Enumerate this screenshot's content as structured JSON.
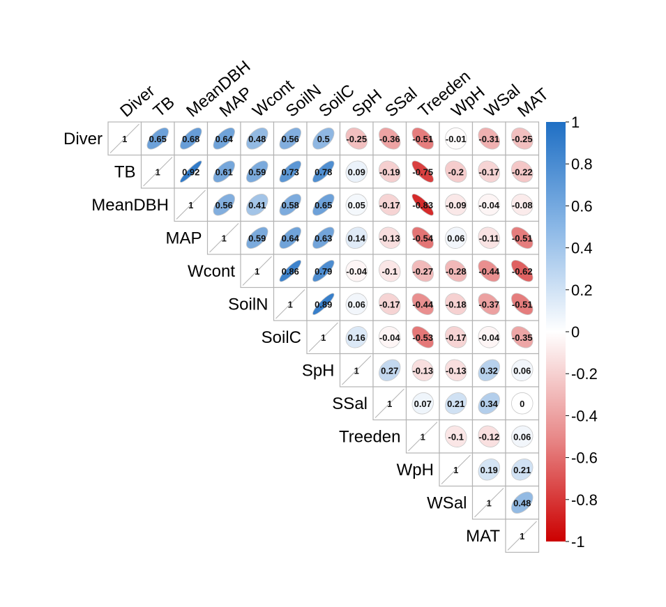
{
  "chart_data": {
    "type": "heatmap",
    "style": "upper-triangle correlation matrix with ellipse glyphs and printed coefficients",
    "title": "",
    "variables": [
      "Diver",
      "TB",
      "MeanDBH",
      "MAP",
      "Wcont",
      "SoilN",
      "SoilC",
      "SpH",
      "SSal",
      "Treeden",
      "WpH",
      "WSal",
      "MAT"
    ],
    "matrix": [
      [
        1,
        0.65,
        0.68,
        0.64,
        0.48,
        0.56,
        0.5,
        -0.25,
        -0.36,
        -0.51,
        -0.01,
        -0.31,
        -0.25
      ],
      [
        null,
        1,
        0.92,
        0.61,
        0.59,
        0.73,
        0.78,
        0.09,
        -0.19,
        -0.75,
        -0.2,
        -0.17,
        -0.22
      ],
      [
        null,
        null,
        1,
        0.56,
        0.41,
        0.58,
        0.65,
        0.05,
        -0.17,
        -0.83,
        -0.09,
        -0.04,
        -0.08
      ],
      [
        null,
        null,
        null,
        1,
        0.59,
        0.64,
        0.63,
        0.14,
        -0.13,
        -0.54,
        0.06,
        -0.11,
        -0.51
      ],
      [
        null,
        null,
        null,
        null,
        1,
        0.86,
        0.79,
        -0.04,
        -0.1,
        -0.27,
        -0.28,
        -0.44,
        -0.62
      ],
      [
        null,
        null,
        null,
        null,
        null,
        1,
        0.89,
        0.06,
        -0.17,
        -0.44,
        -0.18,
        -0.37,
        -0.51
      ],
      [
        null,
        null,
        null,
        null,
        null,
        null,
        1,
        0.16,
        -0.04,
        -0.53,
        -0.17,
        -0.04,
        -0.35
      ],
      [
        null,
        null,
        null,
        null,
        null,
        null,
        null,
        1,
        0.27,
        -0.13,
        -0.13,
        0.32,
        0.06
      ],
      [
        null,
        null,
        null,
        null,
        null,
        null,
        null,
        null,
        1,
        0.07,
        0.21,
        0.34,
        0
      ],
      [
        null,
        null,
        null,
        null,
        null,
        null,
        null,
        null,
        null,
        1,
        -0.1,
        -0.12,
        0.06
      ],
      [
        null,
        null,
        null,
        null,
        null,
        null,
        null,
        null,
        null,
        null,
        1,
        0.19,
        0.21
      ],
      [
        null,
        null,
        null,
        null,
        null,
        null,
        null,
        null,
        null,
        null,
        null,
        1,
        0.48
      ],
      [
        null,
        null,
        null,
        null,
        null,
        null,
        null,
        null,
        null,
        null,
        null,
        null,
        1
      ]
    ],
    "colorbar": {
      "range": [
        -1,
        1
      ],
      "ticks": [
        1,
        0.8,
        0.6,
        0.4,
        0.2,
        0,
        -0.2,
        -0.4,
        -0.6,
        -0.8,
        -1
      ],
      "tick_labels": [
        "1",
        "0.8",
        "0.6",
        "0.4",
        "0.2",
        "0",
        "-0.2",
        "-0.4",
        "-0.6",
        "-0.8",
        "-1"
      ],
      "colors": {
        "negative": "#cc0000",
        "neutral": "#ffffff",
        "positive": "#1f6fc4"
      }
    },
    "grid_color": "#b3b3b3",
    "label_color": "#000000",
    "value_color": "#111111"
  }
}
